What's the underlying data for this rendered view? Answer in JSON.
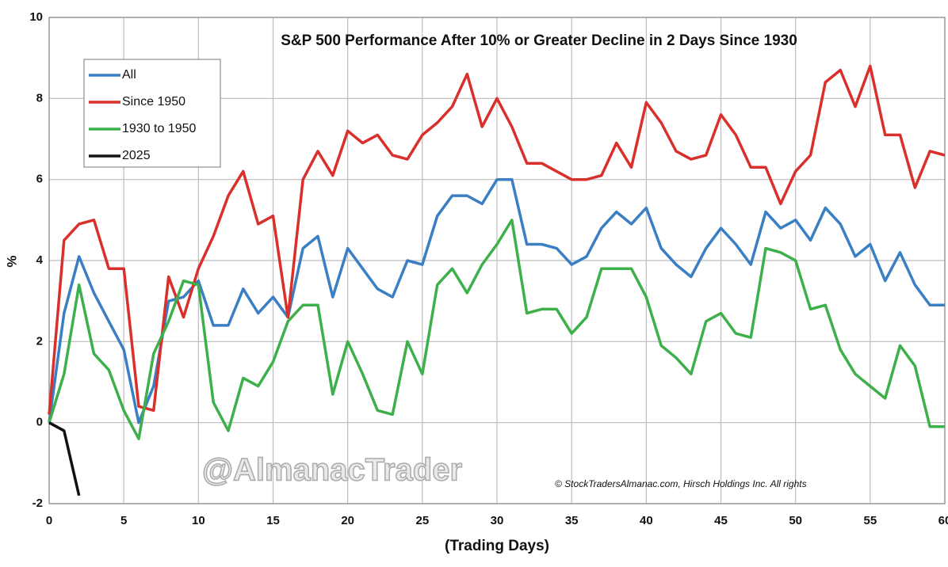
{
  "chart_data": {
    "type": "line",
    "title": "S&P 500 Performance After 10% or Greater Decline in 2 Days Since 1930",
    "x_label": "(Trading Days)",
    "y_label": "%",
    "watermark": "@AlmanacTrader",
    "source": "© StockTradersAlmanac.com, Hirsch Holdings Inc. All rights",
    "x": [
      0,
      1,
      2,
      3,
      4,
      5,
      6,
      7,
      8,
      9,
      10,
      11,
      12,
      13,
      14,
      15,
      16,
      17,
      18,
      19,
      20,
      21,
      22,
      23,
      24,
      25,
      26,
      27,
      28,
      29,
      30,
      31,
      32,
      33,
      34,
      35,
      36,
      37,
      38,
      39,
      40,
      41,
      42,
      43,
      44,
      45,
      46,
      47,
      48,
      49,
      50,
      51,
      52,
      53,
      54,
      55,
      56,
      57,
      58,
      59,
      60
    ],
    "xlim": [
      0,
      60
    ],
    "xticks": [
      0,
      5,
      10,
      15,
      20,
      25,
      30,
      35,
      40,
      45,
      50,
      55,
      60
    ],
    "ylim": [
      -2,
      10
    ],
    "yticks": [
      -2,
      0,
      2,
      4,
      6,
      8,
      10
    ],
    "grid": true,
    "legend": "upper left",
    "series": [
      {
        "name": "All",
        "color": "#3a7fc4",
        "values": [
          0,
          2.7,
          4.1,
          3.2,
          2.5,
          1.8,
          0.0,
          0.9,
          3.0,
          3.1,
          3.5,
          2.4,
          2.4,
          3.3,
          2.7,
          3.1,
          2.6,
          4.3,
          4.6,
          3.1,
          4.3,
          3.8,
          3.3,
          3.1,
          4.0,
          3.9,
          5.1,
          5.6,
          5.6,
          5.4,
          6.0,
          6.0,
          4.4,
          4.4,
          4.3,
          3.9,
          4.1,
          4.8,
          5.2,
          4.9,
          5.3,
          4.3,
          3.9,
          3.6,
          4.3,
          4.8,
          4.4,
          3.9,
          5.2,
          4.8,
          5.0,
          4.5,
          5.3,
          4.9,
          4.1,
          4.4,
          3.5,
          4.2,
          3.4,
          2.9,
          2.9
        ]
      },
      {
        "name": "Since 1950",
        "color": "#d9302c",
        "values": [
          0.2,
          4.5,
          4.9,
          5.0,
          3.8,
          3.8,
          0.4,
          0.3,
          3.6,
          2.6,
          3.8,
          4.6,
          5.6,
          6.2,
          4.9,
          5.1,
          2.6,
          6.0,
          6.7,
          6.1,
          7.2,
          6.9,
          7.1,
          6.6,
          6.5,
          7.1,
          7.4,
          7.8,
          8.6,
          7.3,
          8.0,
          7.3,
          6.4,
          6.4,
          6.2,
          6.0,
          6.0,
          6.1,
          6.9,
          6.3,
          7.9,
          7.4,
          6.7,
          6.5,
          6.6,
          7.6,
          7.1,
          6.3,
          6.3,
          5.4,
          6.2,
          6.6,
          8.4,
          8.7,
          7.8,
          8.8,
          7.1,
          7.1,
          5.8,
          6.7,
          6.6
        ]
      },
      {
        "name": "1930 to 1950",
        "color": "#3db04b",
        "values": [
          0,
          1.2,
          3.4,
          1.7,
          1.3,
          0.3,
          -0.4,
          1.7,
          2.5,
          3.5,
          3.4,
          0.5,
          -0.2,
          1.1,
          0.9,
          1.5,
          2.5,
          2.9,
          2.9,
          0.7,
          2.0,
          1.2,
          0.3,
          0.2,
          2.0,
          1.2,
          3.4,
          3.8,
          3.2,
          3.9,
          4.4,
          5.0,
          2.7,
          2.8,
          2.8,
          2.2,
          2.6,
          3.8,
          3.8,
          3.8,
          3.1,
          1.9,
          1.6,
          1.2,
          2.5,
          2.7,
          2.2,
          2.1,
          4.3,
          4.2,
          4.0,
          2.8,
          2.9,
          1.8,
          1.2,
          0.9,
          0.6,
          1.9,
          1.4,
          -0.1,
          -0.1
        ]
      },
      {
        "name": "2025",
        "color": "#111111",
        "values": [
          0,
          -0.2,
          -1.8,
          null,
          null,
          null,
          null,
          null,
          null,
          null,
          null,
          null,
          null,
          null,
          null,
          null,
          null,
          null,
          null,
          null,
          null,
          null,
          null,
          null,
          null,
          null,
          null,
          null,
          null,
          null,
          null,
          null,
          null,
          null,
          null,
          null,
          null,
          null,
          null,
          null,
          null,
          null,
          null,
          null,
          null,
          null,
          null,
          null,
          null,
          null,
          null,
          null,
          null,
          null,
          null,
          null,
          null,
          null,
          null,
          null,
          null
        ]
      }
    ]
  }
}
